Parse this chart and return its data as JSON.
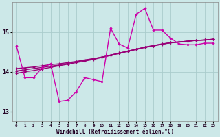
{
  "title": "",
  "xlabel": "Windchill (Refroidissement éolien,°C)",
  "ylabel": "",
  "xlim": [
    -0.5,
    23.5
  ],
  "ylim": [
    12.75,
    15.75
  ],
  "yticks": [
    13,
    14,
    15
  ],
  "xticks": [
    0,
    1,
    2,
    3,
    4,
    5,
    6,
    7,
    8,
    9,
    10,
    11,
    12,
    13,
    14,
    15,
    16,
    17,
    18,
    19,
    20,
    21,
    22,
    23
  ],
  "bg_color": "#cce8e8",
  "grid_color": "#aacccc",
  "line_color_main": "#cc00aa",
  "line_color_lin": "#990077",
  "series_main": [
    14.65,
    13.85,
    13.85,
    14.1,
    14.2,
    13.25,
    13.28,
    13.5,
    13.85,
    13.8,
    13.75,
    15.1,
    14.7,
    14.6,
    15.45,
    15.6,
    15.05,
    15.05,
    14.85,
    14.7,
    14.68,
    14.68,
    14.72,
    14.72
  ],
  "series_lin1": [
    14.08,
    14.1,
    14.12,
    14.15,
    14.18,
    14.2,
    14.23,
    14.26,
    14.3,
    14.33,
    14.37,
    14.42,
    14.47,
    14.52,
    14.57,
    14.62,
    14.66,
    14.7,
    14.73,
    14.75,
    14.77,
    14.79,
    14.8,
    14.82
  ],
  "series_lin2": [
    14.02,
    14.05,
    14.08,
    14.11,
    14.14,
    14.17,
    14.21,
    14.25,
    14.29,
    14.33,
    14.37,
    14.42,
    14.47,
    14.52,
    14.57,
    14.62,
    14.66,
    14.7,
    14.73,
    14.75,
    14.77,
    14.79,
    14.8,
    14.82
  ],
  "series_lin3": [
    13.96,
    14.0,
    14.03,
    14.07,
    14.11,
    14.15,
    14.19,
    14.23,
    14.27,
    14.31,
    14.36,
    14.41,
    14.46,
    14.51,
    14.56,
    14.61,
    14.65,
    14.69,
    14.73,
    14.75,
    14.77,
    14.79,
    14.8,
    14.82
  ]
}
